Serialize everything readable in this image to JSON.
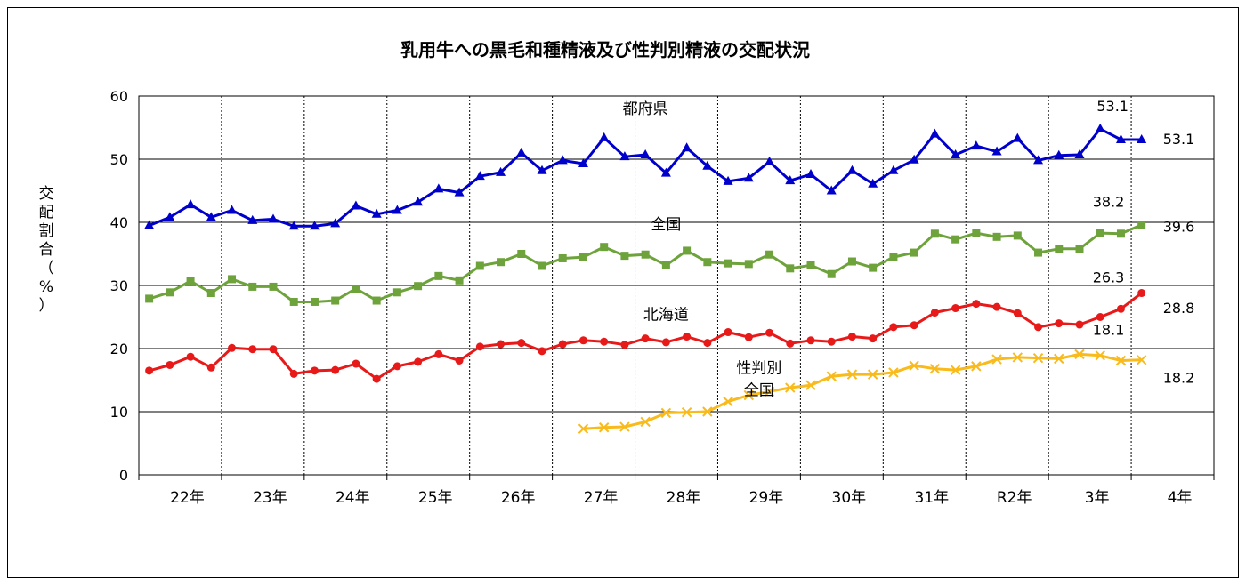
{
  "chart_data": {
    "type": "line",
    "title": "乳用牛への黒毛和種精液及び性判別精液の交配状況",
    "ylabel": "交配割合（%）",
    "ylabel_chars": [
      "交",
      "配",
      "割",
      "合",
      "（",
      "%",
      "）"
    ],
    "ylim": [
      0,
      60
    ],
    "yticks": [
      "0",
      "10",
      "20",
      "30",
      "40",
      "50",
      "60"
    ],
    "x_groups": [
      "22年",
      "23年",
      "24年",
      "25年",
      "26年",
      "27年",
      "28年",
      "29年",
      "30年",
      "31年",
      "R2年",
      "3年",
      "4年"
    ],
    "points_per_group": 4,
    "grid": true,
    "series": [
      {
        "name": "都府県",
        "color": "#0000CC",
        "marker": "triangle",
        "start_index": 0,
        "values": [
          39.5,
          40.8,
          42.8,
          40.8,
          41.9,
          40.3,
          40.5,
          39.4,
          39.4,
          39.8,
          42.6,
          41.3,
          41.9,
          43.2,
          45.3,
          44.7,
          47.3,
          47.9,
          51.0,
          48.2,
          49.8,
          49.3,
          53.4,
          50.4,
          50.7,
          47.8,
          51.8,
          48.9,
          46.5,
          47.0,
          49.6,
          46.6,
          47.6,
          45.0,
          48.2,
          46.1,
          48.2,
          49.9,
          54.0,
          50.7,
          52.1,
          51.2,
          53.3,
          49.8,
          50.6,
          50.7,
          54.8,
          53.1,
          53.1
        ]
      },
      {
        "name": "全国",
        "color": "#6EA33C",
        "marker": "square",
        "start_index": 0,
        "values": [
          27.9,
          28.9,
          30.7,
          28.8,
          31.0,
          29.8,
          29.8,
          27.4,
          27.4,
          27.6,
          29.5,
          27.6,
          28.9,
          29.9,
          31.5,
          30.8,
          33.1,
          33.7,
          35.0,
          33.1,
          34.3,
          34.5,
          36.1,
          34.7,
          34.9,
          33.2,
          35.5,
          33.7,
          33.5,
          33.4,
          34.9,
          32.7,
          33.2,
          31.8,
          33.8,
          32.8,
          34.5,
          35.2,
          38.2,
          37.3,
          38.3,
          37.7,
          37.9,
          35.2,
          35.8,
          35.8,
          38.3,
          38.2,
          39.6
        ]
      },
      {
        "name": "北海道",
        "color": "#E81919",
        "marker": "circle",
        "start_index": 0,
        "values": [
          16.5,
          17.4,
          18.7,
          17.0,
          20.1,
          19.9,
          19.9,
          16.0,
          16.5,
          16.6,
          17.6,
          15.2,
          17.2,
          17.9,
          19.1,
          18.1,
          20.3,
          20.7,
          20.9,
          19.6,
          20.7,
          21.3,
          21.1,
          20.6,
          21.6,
          21.0,
          21.9,
          20.9,
          22.6,
          21.8,
          22.5,
          20.8,
          21.3,
          21.1,
          21.9,
          21.6,
          23.4,
          23.7,
          25.7,
          26.4,
          27.1,
          26.6,
          25.6,
          23.4,
          24.0,
          23.8,
          25.0,
          26.3,
          28.8
        ]
      },
      {
        "name": "性判別全国",
        "color": "#F9BA1B",
        "marker": "x",
        "start_index": 21,
        "values": [
          7.3,
          7.5,
          7.6,
          8.4,
          9.8,
          9.9,
          10.0,
          11.6,
          12.6,
          13.2,
          13.8,
          14.2,
          15.6,
          15.9,
          15.9,
          16.2,
          17.3,
          16.8,
          16.6,
          17.2,
          18.3,
          18.6,
          18.5,
          18.4,
          19.1,
          18.9,
          18.1,
          18.2
        ]
      }
    ],
    "series_labels": [
      {
        "text": "都府県",
        "x_index": 24,
        "y": 57.2
      },
      {
        "text": "全国",
        "x_index": 25,
        "y": 38.9
      },
      {
        "text": "北海道",
        "x_index": 25,
        "y": 24.6
      },
      {
        "text": "性判別",
        "x_index": 29.5,
        "y": 16.1
      },
      {
        "text": "全国",
        "x_index": 29.5,
        "y": 12.6
      }
    ],
    "annotations": [
      {
        "text": "53.1",
        "x_index": 46.6,
        "y": 57.6
      },
      {
        "text": "53.1",
        "x_index": 49.8,
        "y": 52.4
      },
      {
        "text": "38.2",
        "x_index": 46.4,
        "y": 42.5
      },
      {
        "text": "39.6",
        "x_index": 49.8,
        "y": 38.5
      },
      {
        "text": "26.3",
        "x_index": 46.4,
        "y": 30.5
      },
      {
        "text": "28.8",
        "x_index": 49.8,
        "y": 25.6
      },
      {
        "text": "18.1",
        "x_index": 46.4,
        "y": 22.2
      },
      {
        "text": "18.2",
        "x_index": 49.8,
        "y": 14.6
      }
    ]
  }
}
